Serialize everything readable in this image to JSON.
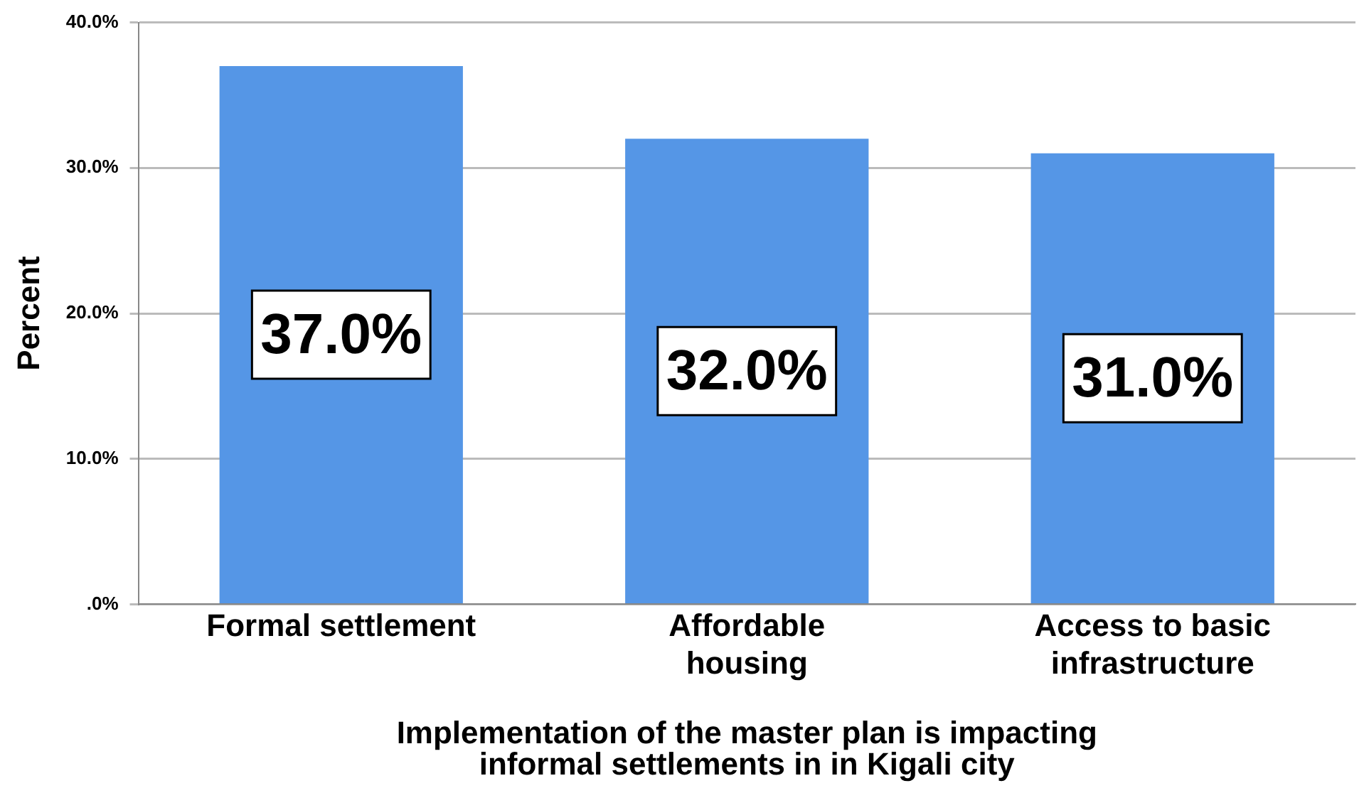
{
  "chart_data": {
    "type": "bar",
    "xlabel": "Implementation of the master plan is impacting informal settlements in in Kigali city",
    "ylabel": "Percent",
    "categories": [
      "Formal settlement",
      "Affordable housing",
      "Access to basic infrastructure"
    ],
    "values": [
      37.0,
      32.0,
      31.0
    ],
    "color": "#5596e6",
    "value_labels": [
      "37.0%",
      "32.0%",
      "31.0%"
    ],
    "ylim": [
      0,
      40
    ],
    "yticks": [
      {
        "value": 0,
        "label": ".0%"
      },
      {
        "value": 10,
        "label": "10.0%"
      },
      {
        "value": 20,
        "label": "20.0%"
      },
      {
        "value": 30,
        "label": "30.0%"
      },
      {
        "value": 40,
        "label": "40.0%"
      }
    ],
    "grid": "y",
    "legend": false
  }
}
